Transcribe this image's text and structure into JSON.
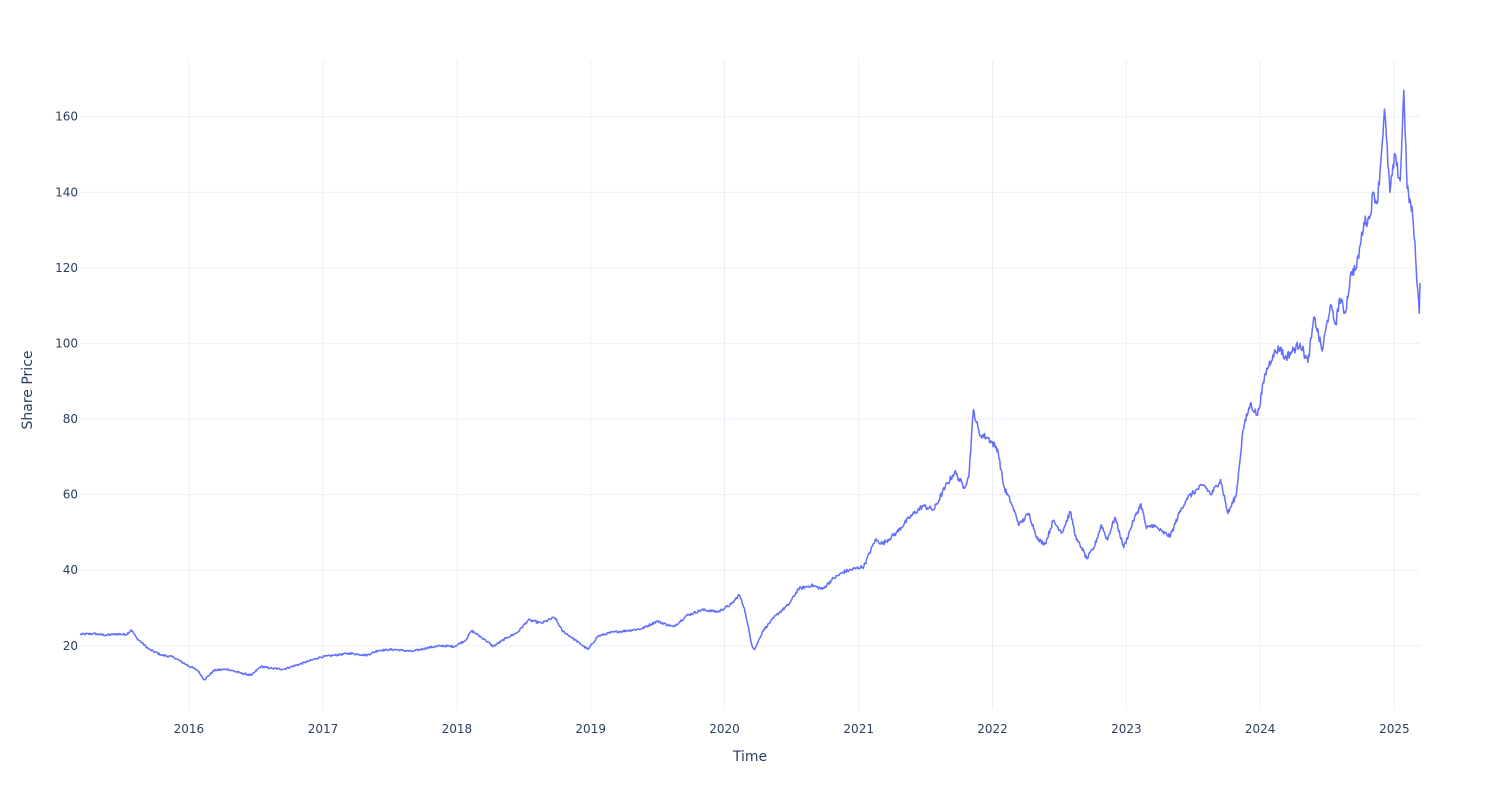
{
  "chart_data": {
    "type": "line",
    "xlabel": "Time",
    "ylabel": "Share Price",
    "x_axis_kind": "date",
    "xlim": [
      "2015-03-10",
      "2025-03-12"
    ],
    "ylim": [
      3,
      175
    ],
    "x_ticks": [
      "2016",
      "2017",
      "2018",
      "2019",
      "2020",
      "2021",
      "2022",
      "2023",
      "2024",
      "2025"
    ],
    "y_ticks": [
      20,
      40,
      60,
      80,
      100,
      120,
      140,
      160
    ],
    "grid": true,
    "legend": "none",
    "series": [
      {
        "color": "#636efa",
        "x": [
          "2015-03-10",
          "2015-04-15",
          "2015-05-20",
          "2015-06-20",
          "2015-07-15",
          "2015-07-28",
          "2015-08-12",
          "2015-09-15",
          "2015-10-20",
          "2015-11-20",
          "2015-12-25",
          "2016-01-25",
          "2016-02-12",
          "2016-03-10",
          "2016-04-15",
          "2016-05-20",
          "2016-06-20",
          "2016-07-15",
          "2016-08-15",
          "2016-09-15",
          "2016-10-25",
          "2016-11-25",
          "2016-12-25",
          "2017-02-01",
          "2017-03-15",
          "2017-05-01",
          "2017-06-01",
          "2017-07-15",
          "2017-09-01",
          "2017-10-15",
          "2017-11-20",
          "2017-12-25",
          "2018-01-25",
          "2018-02-10",
          "2018-03-20",
          "2018-04-10",
          "2018-05-15",
          "2018-06-15",
          "2018-07-15",
          "2018-08-20",
          "2018-09-25",
          "2018-10-15",
          "2018-11-20",
          "2018-12-25",
          "2019-01-20",
          "2019-02-25",
          "2019-04-10",
          "2019-05-20",
          "2019-07-01",
          "2019-08-15",
          "2019-09-20",
          "2019-11-01",
          "2019-12-15",
          "2020-01-20",
          "2020-02-10",
          "2020-02-24",
          "2020-03-16",
          "2020-03-23",
          "2020-04-15",
          "2020-05-20",
          "2020-06-25",
          "2020-07-20",
          "2020-08-25",
          "2020-09-25",
          "2020-10-20",
          "2020-11-20",
          "2020-12-25",
          "2021-01-15",
          "2021-02-15",
          "2021-03-08",
          "2021-04-15",
          "2021-05-20",
          "2021-06-25",
          "2021-07-25",
          "2021-08-25",
          "2021-09-20",
          "2021-10-15",
          "2021-10-28",
          "2021-11-10",
          "2021-11-26",
          "2021-12-20",
          "2022-01-15",
          "2022-02-01",
          "2022-02-20",
          "2022-03-15",
          "2022-04-10",
          "2022-05-05",
          "2022-05-25",
          "2022-06-15",
          "2022-07-10",
          "2022-08-01",
          "2022-08-18",
          "2022-09-01",
          "2022-09-15",
          "2022-10-05",
          "2022-10-25",
          "2022-11-10",
          "2022-12-01",
          "2022-12-25",
          "2023-01-20",
          "2023-02-10",
          "2023-02-25",
          "2023-03-15",
          "2023-04-10",
          "2023-05-01",
          "2023-05-25",
          "2023-06-15",
          "2023-07-15",
          "2023-08-01",
          "2023-08-20",
          "2023-09-15",
          "2023-10-05",
          "2023-10-28",
          "2023-11-15",
          "2023-12-05",
          "2023-12-25",
          "2024-01-15",
          "2024-02-05",
          "2024-02-25",
          "2024-03-08",
          "2024-04-19",
          "2024-05-10",
          "2024-05-28",
          "2024-06-18",
          "2024-07-10",
          "2024-07-25",
          "2024-08-05",
          "2024-08-20",
          "2024-09-06",
          "2024-09-20",
          "2024-10-10",
          "2024-10-25",
          "2024-11-05",
          "2024-11-15",
          "2024-11-25",
          "2024-12-05",
          "2024-12-20",
          "2025-01-03",
          "2025-01-07",
          "2025-01-17",
          "2025-01-27",
          "2025-02-05",
          "2025-02-20",
          "2025-02-28",
          "2025-03-05",
          "2025-03-10",
          "2025-03-12"
        ],
        "y": [
          23.0,
          23.2,
          22.8,
          23.1,
          23.0,
          24.2,
          22.0,
          19.0,
          17.5,
          17.0,
          15.0,
          13.5,
          11.0,
          13.5,
          13.8,
          12.8,
          12.2,
          14.5,
          14.0,
          13.8,
          15.0,
          16.0,
          17.0,
          17.5,
          18.0,
          17.5,
          18.8,
          19.0,
          18.5,
          19.5,
          20.0,
          19.8,
          21.5,
          24.0,
          21.5,
          19.8,
          22.0,
          23.5,
          26.8,
          26.0,
          27.5,
          24.0,
          21.5,
          19.0,
          22.5,
          23.5,
          24.0,
          24.5,
          26.5,
          25.0,
          28.0,
          29.5,
          29.0,
          31.0,
          33.5,
          30.0,
          20.0,
          19.0,
          24.0,
          28.0,
          31.0,
          35.0,
          36.0,
          35.0,
          37.5,
          39.5,
          40.5,
          41.0,
          48.0,
          47.0,
          50.0,
          54.0,
          57.0,
          56.0,
          62.0,
          66.0,
          62.0,
          64.5,
          82.5,
          76.0,
          75.0,
          72.0,
          62.0,
          58.0,
          52.0,
          55.0,
          48.0,
          47.0,
          53.0,
          50.0,
          55.5,
          48.0,
          46.0,
          43.0,
          46.0,
          52.0,
          48.0,
          54.0,
          46.0,
          53.0,
          57.5,
          51.0,
          52.0,
          50.0,
          49.0,
          55.0,
          59.0,
          61.5,
          62.5,
          60.0,
          64.0,
          55.0,
          60.0,
          77.0,
          84.0,
          81.0,
          92.0,
          97.0,
          99.0,
          96.0,
          100.0,
          95.0,
          107.0,
          98.0,
          110.0,
          105.0,
          112.0,
          108.0,
          119.0,
          120.0,
          132.0,
          133.0,
          140.0,
          137.0,
          148.0,
          162.0,
          140.0,
          150.0,
          147.0,
          143.0,
          167.0,
          141.0,
          134.0,
          123.0,
          115.0,
          108.0,
          116.0
        ]
      }
    ]
  }
}
